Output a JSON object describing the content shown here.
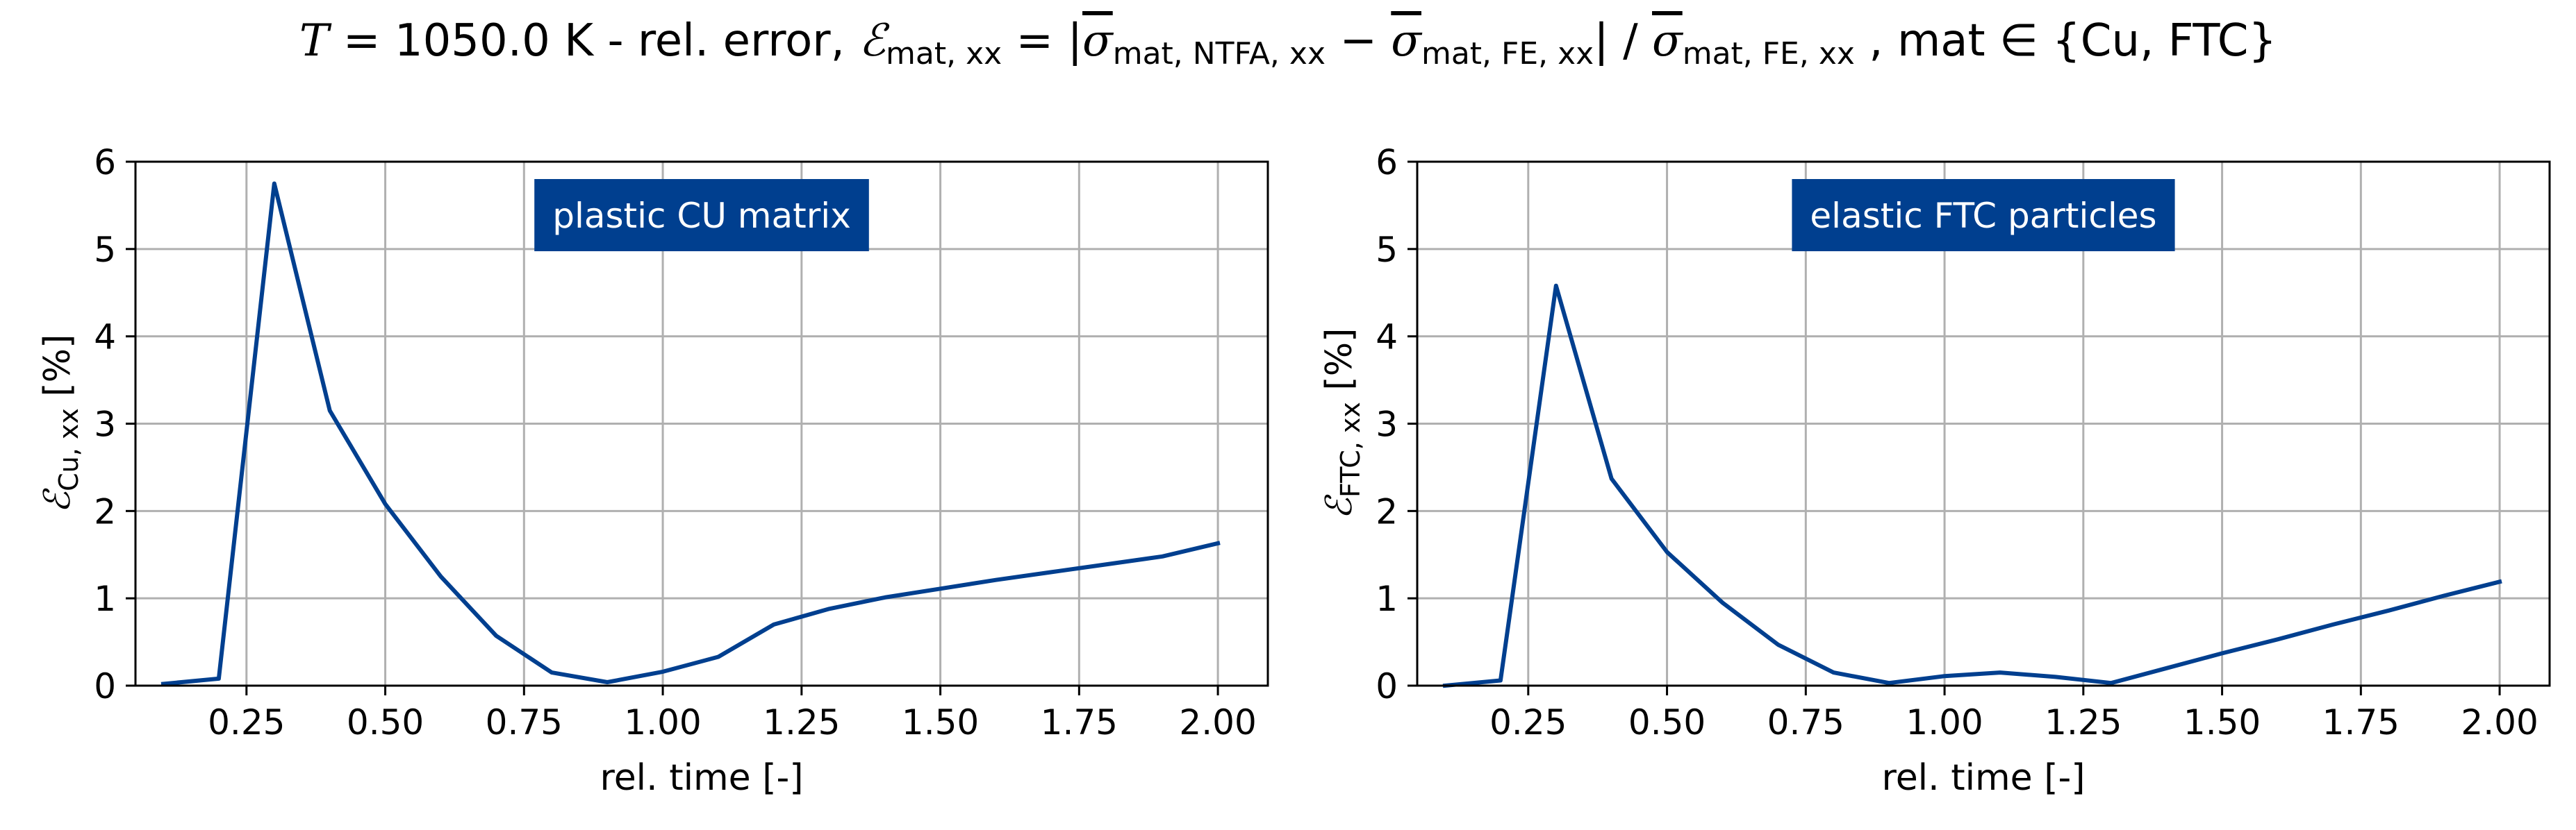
{
  "figure": {
    "title_parts": {
      "t": "T",
      "temp": " = 1050.0 K - rel. error,  ",
      "eps": "ℰ",
      "eps_sub": "mat, xx",
      "eq": " = |",
      "sigma1": "σ",
      "sigma1_sub": "mat, NTFA, xx",
      "minus": " − ",
      "sigma2": "σ",
      "sigma2_sub": "mat, FE, xx",
      "bar": "| / ",
      "sigma3": "σ",
      "sigma3_sub": "mat, FE, xx",
      "tail": " ,  mat ∈ {Cu, FTC}"
    }
  },
  "colors": {
    "line": "#003f8f",
    "label_box": "#003f8f",
    "grid": "#b0b0b0"
  },
  "chart_data": [
    {
      "type": "line",
      "annotation": "plastic CU matrix",
      "xlabel": "rel. time [-]",
      "ylabel_symbol": "ℰ",
      "ylabel_sub": "Cu, xx",
      "ylabel_unit": "[%]",
      "xlim": [
        0.05,
        2.09
      ],
      "ylim": [
        0,
        6
      ],
      "xticks": [
        0.25,
        0.5,
        0.75,
        1.0,
        1.25,
        1.5,
        1.75,
        2.0
      ],
      "xtick_labels": [
        "0.25",
        "0.50",
        "0.75",
        "1.00",
        "1.25",
        "1.50",
        "1.75",
        "2.00"
      ],
      "yticks": [
        0,
        1,
        2,
        3,
        4,
        5,
        6
      ],
      "ytick_labels": [
        "0",
        "1",
        "2",
        "3",
        "4",
        "5",
        "6"
      ],
      "grid": true,
      "x": [
        0.1,
        0.2,
        0.3,
        0.4,
        0.5,
        0.6,
        0.7,
        0.8,
        0.9,
        1.0,
        1.1,
        1.2,
        1.3,
        1.4,
        1.5,
        1.6,
        1.7,
        1.8,
        1.9,
        2.0
      ],
      "y": [
        0.02,
        0.08,
        5.75,
        3.15,
        2.08,
        1.25,
        0.57,
        0.15,
        0.04,
        0.16,
        0.33,
        0.7,
        0.88,
        1.01,
        1.11,
        1.21,
        1.3,
        1.39,
        1.48,
        1.63
      ]
    },
    {
      "type": "line",
      "annotation": "elastic FTC particles",
      "xlabel": "rel. time [-]",
      "ylabel_symbol": "ℰ",
      "ylabel_sub": "FTC, xx",
      "ylabel_unit": "[%]",
      "xlim": [
        0.05,
        2.09
      ],
      "ylim": [
        0,
        6
      ],
      "xticks": [
        0.25,
        0.5,
        0.75,
        1.0,
        1.25,
        1.5,
        1.75,
        2.0
      ],
      "xtick_labels": [
        "0.25",
        "0.50",
        "0.75",
        "1.00",
        "1.25",
        "1.50",
        "1.75",
        "2.00"
      ],
      "yticks": [
        0,
        1,
        2,
        3,
        4,
        5,
        6
      ],
      "ytick_labels": [
        "0",
        "1",
        "2",
        "3",
        "4",
        "5",
        "6"
      ],
      "grid": true,
      "x": [
        0.1,
        0.2,
        0.3,
        0.4,
        0.5,
        0.6,
        0.7,
        0.8,
        0.9,
        1.0,
        1.1,
        1.2,
        1.3,
        1.4,
        1.5,
        1.6,
        1.7,
        1.8,
        1.9,
        2.0
      ],
      "y": [
        0.0,
        0.06,
        4.58,
        2.37,
        1.53,
        0.95,
        0.47,
        0.15,
        0.03,
        0.11,
        0.15,
        0.1,
        0.03,
        0.2,
        0.37,
        0.53,
        0.7,
        0.86,
        1.03,
        1.19
      ]
    }
  ]
}
